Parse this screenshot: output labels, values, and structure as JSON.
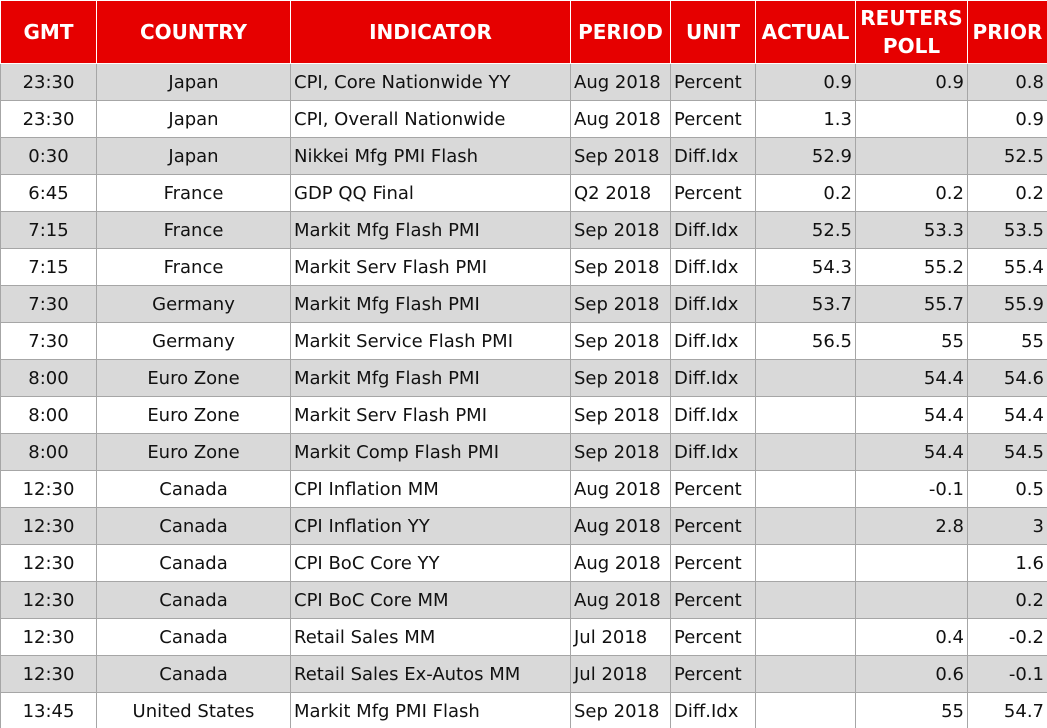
{
  "table": {
    "header": [
      "GMT",
      "COUNTRY",
      "INDICATOR",
      "PERIOD",
      "UNIT",
      "ACTUAL",
      "REUTERS POLL",
      "PRIOR"
    ],
    "rows": [
      [
        "23:30",
        "Japan",
        "CPI, Core Nationwide YY",
        "Aug 2018",
        "Percent",
        "0.9",
        "0.9",
        "0.8"
      ],
      [
        "23:30",
        "Japan",
        "CPI, Overall Nationwide",
        "Aug 2018",
        "Percent",
        "1.3",
        null,
        "0.9"
      ],
      [
        "0:30",
        "Japan",
        "Nikkei Mfg PMI Flash",
        "Sep 2018",
        "Diff.Idx",
        "52.9",
        null,
        "52.5"
      ],
      [
        "6:45",
        "France",
        "GDP QQ Final",
        "Q2 2018",
        "Percent",
        "0.2",
        "0.2",
        "0.2"
      ],
      [
        "7:15",
        "France",
        "Markit Mfg Flash PMI",
        "Sep 2018",
        "Diff.Idx",
        "52.5",
        "53.3",
        "53.5"
      ],
      [
        "7:15",
        "France",
        "Markit Serv Flash PMI",
        "Sep 2018",
        "Diff.Idx",
        "54.3",
        "55.2",
        "55.4"
      ],
      [
        "7:30",
        "Germany",
        "Markit Mfg Flash PMI",
        "Sep 2018",
        "Diff.Idx",
        "53.7",
        "55.7",
        "55.9"
      ],
      [
        "7:30",
        "Germany",
        "Markit Service Flash PMI",
        "Sep 2018",
        "Diff.Idx",
        "56.5",
        "55",
        "55"
      ],
      [
        "8:00",
        "Euro Zone",
        "Markit Mfg Flash PMI",
        "Sep 2018",
        "Diff.Idx",
        null,
        "54.4",
        "54.6"
      ],
      [
        "8:00",
        "Euro Zone",
        "Markit Serv Flash PMI",
        "Sep 2018",
        "Diff.Idx",
        null,
        "54.4",
        "54.4"
      ],
      [
        "8:00",
        "Euro Zone",
        "Markit Comp Flash PMI",
        "Sep 2018",
        "Diff.Idx",
        null,
        "54.4",
        "54.5"
      ],
      [
        "12:30",
        "Canada",
        "CPI Inflation MM",
        "Aug 2018",
        "Percent",
        null,
        "-0.1",
        "0.5"
      ],
      [
        "12:30",
        "Canada",
        "CPI Inflation YY",
        "Aug 2018",
        "Percent",
        null,
        "2.8",
        "3"
      ],
      [
        "12:30",
        "Canada",
        "CPI BoC Core YY",
        "Aug 2018",
        "Percent",
        null,
        null,
        "1.6"
      ],
      [
        "12:30",
        "Canada",
        "CPI BoC Core MM",
        "Aug 2018",
        "Percent",
        null,
        null,
        "0.2"
      ],
      [
        "12:30",
        "Canada",
        "Retail Sales MM",
        "Jul 2018",
        "Percent",
        null,
        "0.4",
        "-0.2"
      ],
      [
        "12:30",
        "Canada",
        "Retail Sales Ex-Autos MM",
        "Jul 2018",
        "Percent",
        null,
        "0.6",
        "-0.1"
      ],
      [
        "13:45",
        "United States",
        "Markit Mfg PMI Flash",
        "Sep 2018",
        "Diff.Idx",
        null,
        "55",
        "54.7"
      ]
    ]
  }
}
